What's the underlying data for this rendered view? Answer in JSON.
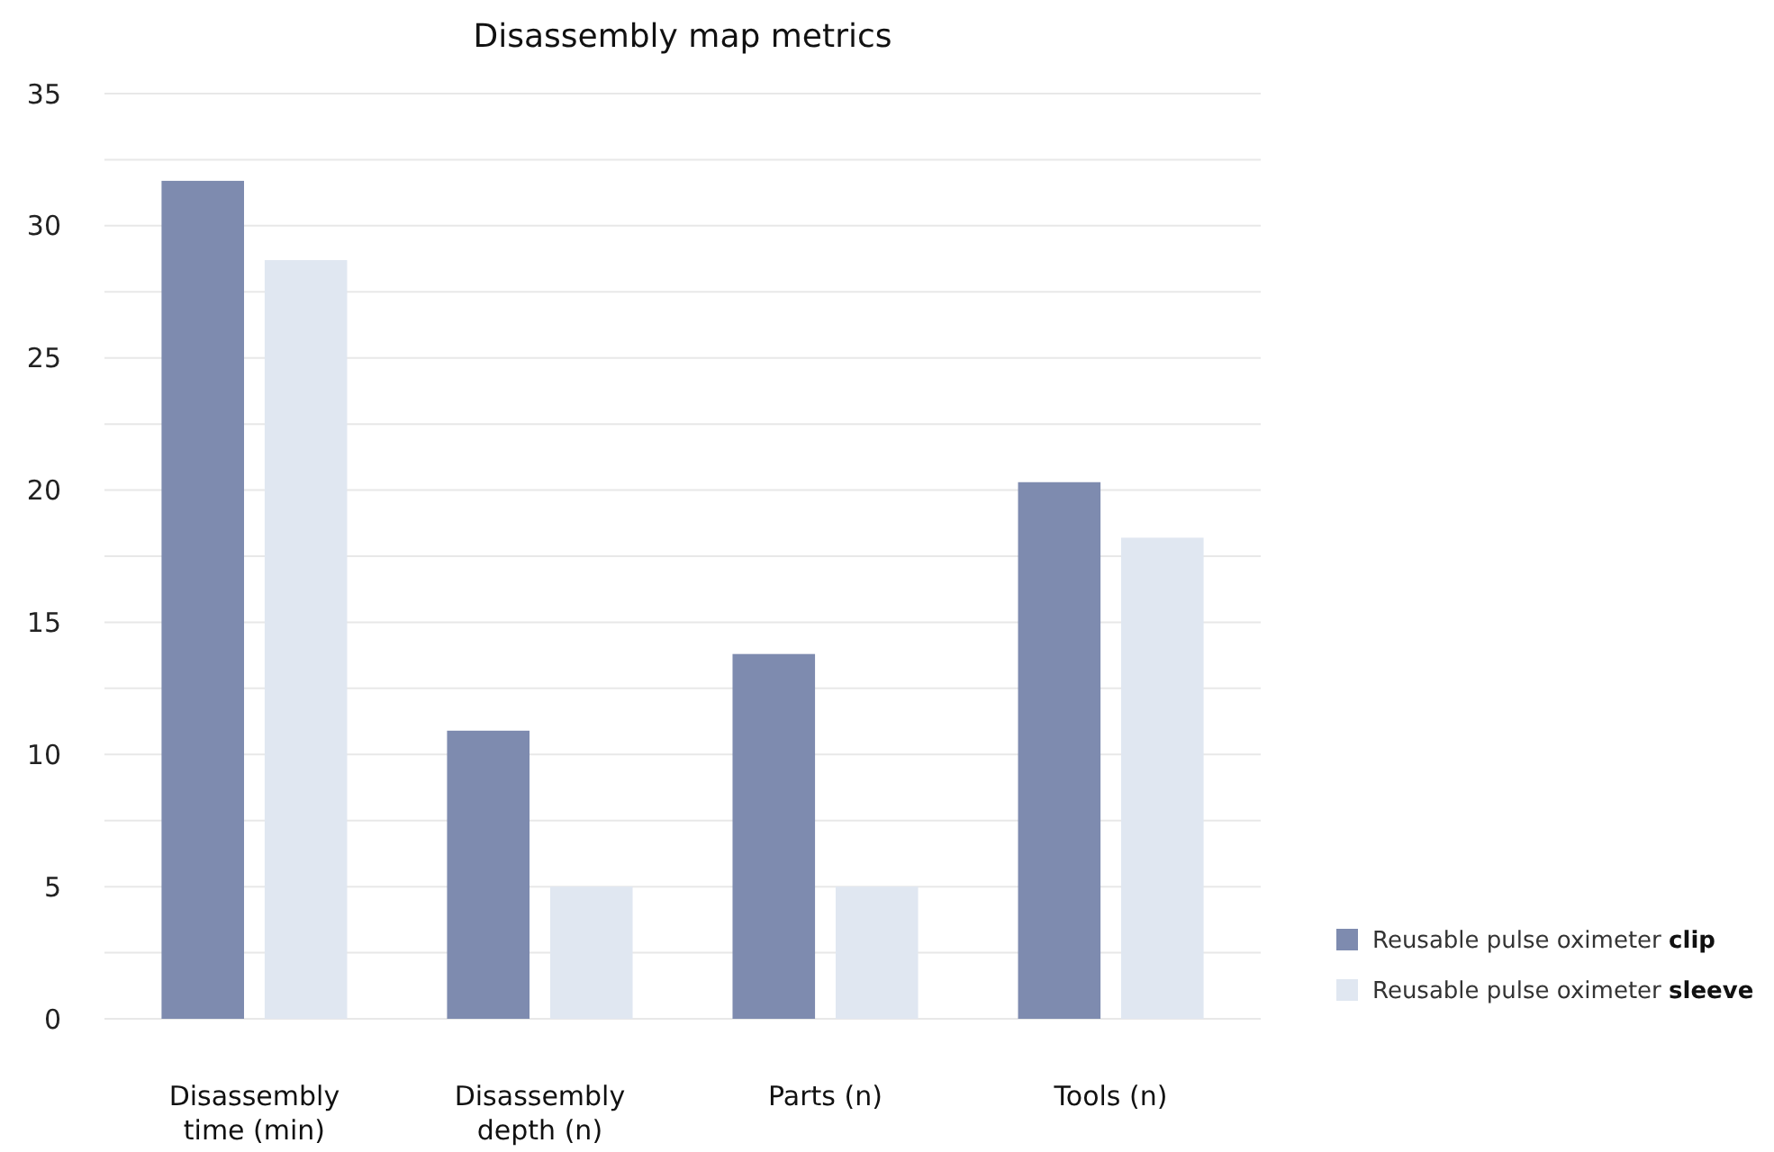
{
  "chart_data": {
    "type": "bar",
    "title": "Disassembly map metrics",
    "categories": [
      "Disassembly time (min)",
      "Disassembly depth (n)",
      "Parts (n)",
      "Tools (n)"
    ],
    "series": [
      {
        "name": "Reusable pulse oximeter clip",
        "color": "#7e8baf",
        "values": [
          31.7,
          10.9,
          13.8,
          20.3
        ]
      },
      {
        "name": "Reusable pulse oximeter sleeve",
        "color": "#e0e7f1",
        "values": [
          28.7,
          5.0,
          5.0,
          18.2
        ]
      }
    ],
    "ylim": [
      0,
      35
    ],
    "yticks": [
      0,
      {
        "value": 2.5,
        "label": null
      },
      5,
      {
        "value": 7.5,
        "label": null
      },
      10,
      {
        "value": 12.5,
        "label": null
      },
      15,
      {
        "value": 17.5,
        "label": null
      },
      20,
      {
        "value": 22.5,
        "label": null
      },
      25,
      {
        "value": 27.5,
        "label": null
      },
      30,
      {
        "value": 32.5,
        "label": null
      },
      35
    ],
    "grid": "y",
    "legend": "bottom right"
  }
}
